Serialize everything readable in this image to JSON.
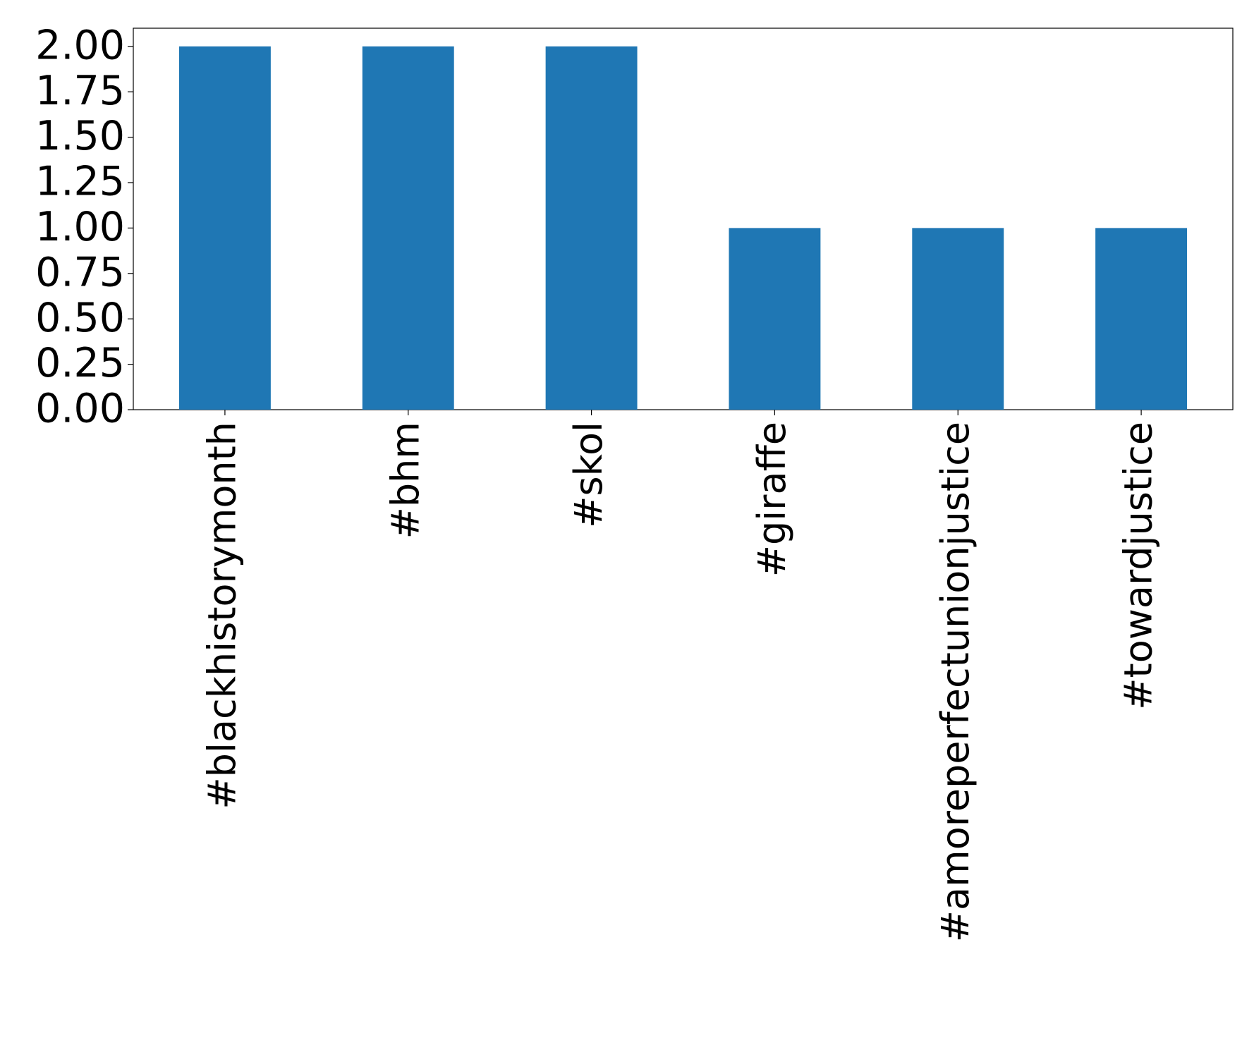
{
  "chart_data": {
    "type": "bar",
    "categories": [
      "#blackhistorymonth",
      "#bhm",
      "#skol",
      "#giraffe",
      "#amoreperfectunionjustice",
      "#towardjustice"
    ],
    "values": [
      2,
      2,
      2,
      1,
      1,
      1
    ],
    "color": "#1f77b4",
    "ylim": [
      0,
      2.1
    ],
    "yticks": [
      {
        "value": 0,
        "label": "0.00"
      },
      {
        "value": 0.25,
        "label": "0.25"
      },
      {
        "value": 0.5,
        "label": "0.50"
      },
      {
        "value": 0.75,
        "label": "0.75"
      },
      {
        "value": 1,
        "label": "1.00"
      },
      {
        "value": 1.25,
        "label": "1.25"
      },
      {
        "value": 1.5,
        "label": "1.50"
      },
      {
        "value": 1.75,
        "label": "1.75"
      },
      {
        "value": 2,
        "label": "2.00"
      }
    ],
    "grid": false
  }
}
